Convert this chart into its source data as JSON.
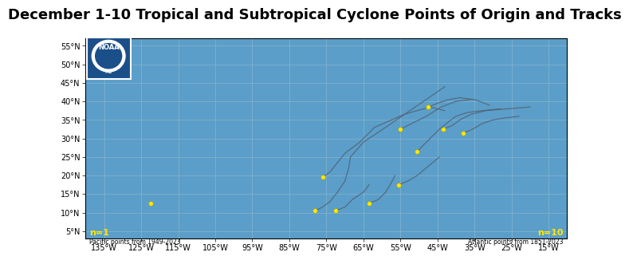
{
  "title": "December 1-10 Tropical and Subtropical Cyclone Points of Origin and Tracks",
  "lon_min": -140,
  "lon_max": -10,
  "lat_min": 3,
  "lat_max": 57,
  "ocean_color": "#5B9EC9",
  "land_color": "#C8C8C8",
  "lake_color": "#5B9EC9",
  "grid_color": "#8AB4CC",
  "track_color": "#506070",
  "point_color": "#FFE800",
  "pacific_points": [
    [
      -122.5,
      12.5
    ]
  ],
  "atlantic_points": [
    [
      -78.0,
      10.5
    ],
    [
      -72.5,
      10.5
    ],
    [
      -63.5,
      12.5
    ],
    [
      -76.0,
      19.5
    ],
    [
      -50.5,
      26.5
    ],
    [
      -43.5,
      32.5
    ],
    [
      -38.0,
      31.5
    ],
    [
      -47.5,
      38.5
    ],
    [
      -55.0,
      32.5
    ],
    [
      -55.5,
      17.5
    ]
  ],
  "tracks": [
    [
      [
        -78.0,
        10.5
      ],
      [
        -76.0,
        11.5
      ],
      [
        -74.0,
        13.0
      ],
      [
        -72.0,
        15.5
      ],
      [
        -70.0,
        18.5
      ],
      [
        -69.0,
        22.0
      ],
      [
        -68.5,
        25.0
      ],
      [
        -65.0,
        29.0
      ],
      [
        -59.0,
        33.0
      ],
      [
        -51.0,
        38.5
      ],
      [
        -43.0,
        44.0
      ]
    ],
    [
      [
        -72.5,
        10.5
      ],
      [
        -70.0,
        11.5
      ],
      [
        -68.0,
        13.5
      ],
      [
        -65.0,
        15.5
      ],
      [
        -63.5,
        17.5
      ]
    ],
    [
      [
        -63.5,
        12.5
      ],
      [
        -61.0,
        13.5
      ],
      [
        -59.0,
        15.5
      ],
      [
        -57.5,
        18.0
      ],
      [
        -56.5,
        20.0
      ]
    ],
    [
      [
        -76.0,
        19.5
      ],
      [
        -74.0,
        21.0
      ],
      [
        -72.0,
        23.5
      ],
      [
        -70.0,
        26.0
      ],
      [
        -66.0,
        29.0
      ],
      [
        -62.0,
        33.0
      ],
      [
        -54.0,
        36.5
      ],
      [
        -47.0,
        38.5
      ],
      [
        -43.0,
        37.5
      ]
    ],
    [
      [
        -50.5,
        26.5
      ],
      [
        -48.5,
        28.5
      ],
      [
        -46.5,
        30.5
      ],
      [
        -44.5,
        32.5
      ],
      [
        -42.0,
        34.5
      ],
      [
        -40.0,
        36.0
      ],
      [
        -37.0,
        37.0
      ],
      [
        -33.0,
        37.5
      ],
      [
        -28.0,
        38.0
      ]
    ],
    [
      [
        -43.5,
        32.5
      ],
      [
        -41.0,
        33.5
      ],
      [
        -39.0,
        35.0
      ],
      [
        -36.0,
        36.5
      ],
      [
        -32.0,
        37.5
      ],
      [
        -26.0,
        38.0
      ],
      [
        -20.0,
        38.5
      ]
    ],
    [
      [
        -38.0,
        31.5
      ],
      [
        -35.5,
        32.5
      ],
      [
        -33.0,
        34.0
      ],
      [
        -30.0,
        35.0
      ],
      [
        -27.0,
        35.5
      ],
      [
        -23.0,
        36.0
      ]
    ],
    [
      [
        -47.5,
        38.5
      ],
      [
        -45.0,
        39.5
      ],
      [
        -42.0,
        40.5
      ],
      [
        -39.0,
        41.0
      ],
      [
        -35.0,
        40.5
      ],
      [
        -31.0,
        39.0
      ]
    ],
    [
      [
        -55.0,
        32.5
      ],
      [
        -52.0,
        34.0
      ],
      [
        -48.0,
        36.0
      ],
      [
        -44.0,
        38.5
      ],
      [
        -40.0,
        40.0
      ],
      [
        -36.0,
        40.5
      ]
    ],
    [
      [
        -55.5,
        17.5
      ],
      [
        -53.0,
        18.5
      ],
      [
        -50.5,
        20.0
      ],
      [
        -47.5,
        22.5
      ],
      [
        -44.5,
        25.0
      ]
    ]
  ],
  "grid_lons": [
    -135,
    -125,
    -115,
    -105,
    -95,
    -85,
    -75,
    -65,
    -55,
    -45,
    -35,
    -25,
    -15
  ],
  "grid_lats": [
    5,
    10,
    15,
    20,
    25,
    30,
    35,
    40,
    45,
    50,
    55
  ],
  "xlabel_lons": [
    -135,
    -125,
    -115,
    -105,
    -95,
    -85,
    -75,
    -65,
    -55,
    -45,
    -35,
    -25,
    -15
  ],
  "ylabel_lats": [
    5,
    10,
    15,
    20,
    25,
    30,
    35,
    40,
    45,
    50,
    55
  ],
  "title_fontsize": 13,
  "label_fontsize": 7,
  "n_pacific": "n=1",
  "n_atlantic": "n=10",
  "pacific_label": "Pacific points from 1949-2023",
  "atlantic_label": "Atlantic points from 1851-2023",
  "noaa_blue": "#1B4F8A",
  "noaa_logo_text": "NOAA"
}
